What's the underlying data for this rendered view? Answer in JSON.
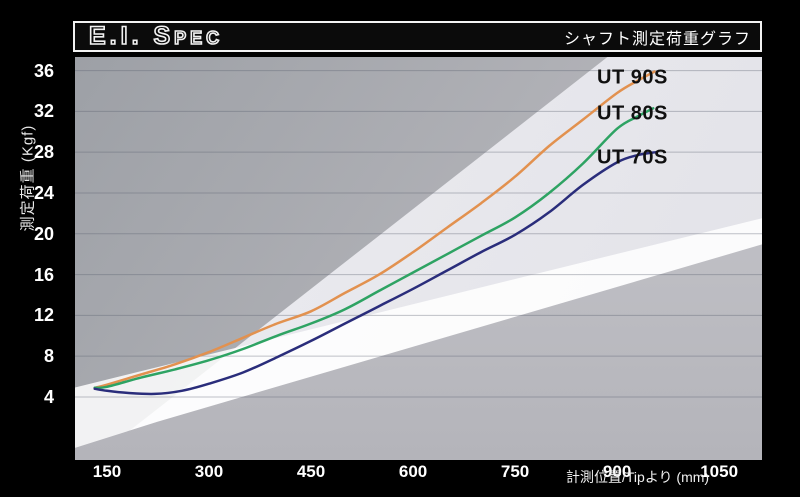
{
  "header": {
    "title": "E.I. Spec",
    "subtitle": "シャフト測定荷重グラフ"
  },
  "chart_data": {
    "type": "line",
    "title": "E.I. Spec",
    "subtitle": "シャフト測定荷重グラフ",
    "xlabel": "計測位置/Tipより (mm)",
    "ylabel": "測定荷重 (Kgf)",
    "xticks": [
      150,
      300,
      450,
      600,
      750,
      900,
      1050
    ],
    "yticks": [
      4,
      8,
      12,
      16,
      20,
      24,
      28,
      32,
      36
    ],
    "xlim": [
      103,
      1113
    ],
    "ylim": [
      -2.18,
      37.33
    ],
    "grid": true,
    "legend_position": "right-inline",
    "series": [
      {
        "name": "UT 90S",
        "color": "#E2914F",
        "points": [
          [
            132,
            4.9
          ],
          [
            150,
            5.2
          ],
          [
            200,
            6.2
          ],
          [
            250,
            7.2
          ],
          [
            300,
            8.4
          ],
          [
            350,
            9.8
          ],
          [
            400,
            11.2
          ],
          [
            450,
            12.4
          ],
          [
            500,
            14.2
          ],
          [
            550,
            16.0
          ],
          [
            600,
            18.2
          ],
          [
            650,
            20.6
          ],
          [
            700,
            23.0
          ],
          [
            750,
            25.6
          ],
          [
            800,
            28.6
          ],
          [
            850,
            31.2
          ],
          [
            900,
            33.8
          ],
          [
            930,
            35.0
          ],
          [
            955,
            35.9
          ]
        ]
      },
      {
        "name": "UT 80S",
        "color": "#2EA363",
        "points": [
          [
            132,
            4.9
          ],
          [
            150,
            5.0
          ],
          [
            200,
            5.9
          ],
          [
            250,
            6.7
          ],
          [
            300,
            7.6
          ],
          [
            350,
            8.7
          ],
          [
            400,
            10.0
          ],
          [
            450,
            11.2
          ],
          [
            500,
            12.6
          ],
          [
            550,
            14.4
          ],
          [
            600,
            16.2
          ],
          [
            650,
            18.0
          ],
          [
            700,
            19.8
          ],
          [
            750,
            21.6
          ],
          [
            800,
            24.0
          ],
          [
            850,
            26.9
          ],
          [
            900,
            30.3
          ],
          [
            930,
            31.5
          ],
          [
            953,
            32.3
          ]
        ]
      },
      {
        "name": "UT 70S",
        "color": "#2A2D7B",
        "points": [
          [
            132,
            4.8
          ],
          [
            150,
            4.6
          ],
          [
            180,
            4.4
          ],
          [
            220,
            4.3
          ],
          [
            260,
            4.6
          ],
          [
            300,
            5.3
          ],
          [
            350,
            6.4
          ],
          [
            400,
            7.9
          ],
          [
            450,
            9.5
          ],
          [
            500,
            11.2
          ],
          [
            550,
            12.9
          ],
          [
            600,
            14.6
          ],
          [
            650,
            16.4
          ],
          [
            700,
            18.2
          ],
          [
            750,
            19.9
          ],
          [
            800,
            22.1
          ],
          [
            850,
            24.8
          ],
          [
            900,
            27.0
          ],
          [
            930,
            27.7
          ],
          [
            957,
            28.0
          ]
        ]
      }
    ]
  },
  "style": {
    "grid_color": "rgba(90,95,110,0.38)"
  }
}
